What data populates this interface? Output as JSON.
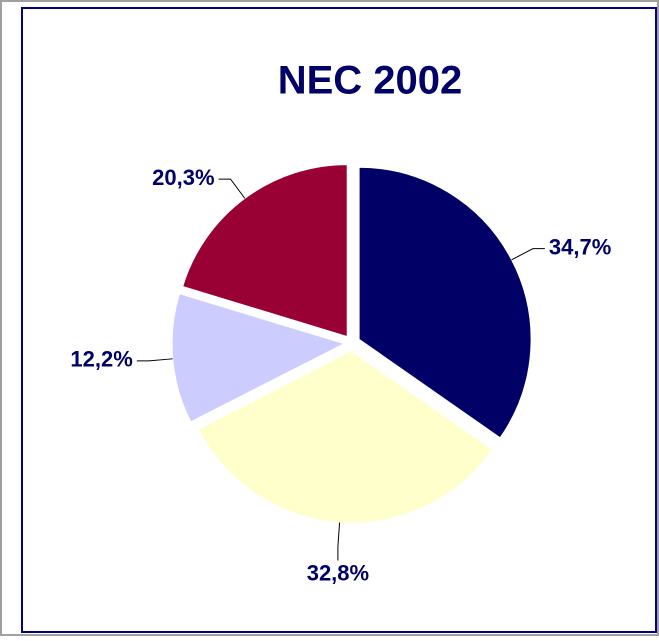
{
  "chart_data": {
    "type": "pie",
    "title": "NEC 2002",
    "categories": [
      null,
      null,
      null,
      null
    ],
    "values": [
      34.7,
      32.8,
      12.2,
      20.3
    ],
    "value_labels": [
      "34,7%",
      "32,8%",
      "12,2%",
      "20,3%"
    ],
    "colors": [
      "#000066",
      "#ffffcc",
      "#ccccff",
      "#990033"
    ]
  }
}
